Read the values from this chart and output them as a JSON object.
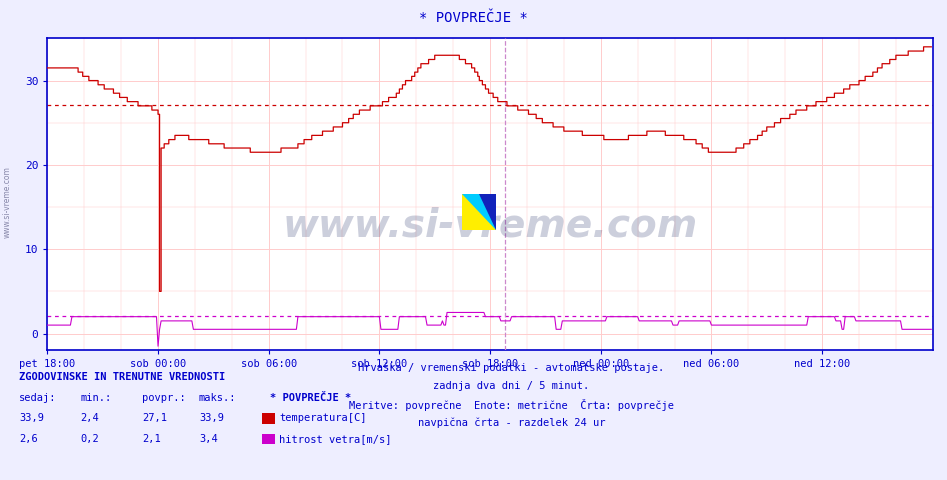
{
  "title": "* POVPREČJE *",
  "bg_color": "#eeeeff",
  "plot_bg_color": "#ffffff",
  "temp_color": "#cc0000",
  "wind_color": "#cc00cc",
  "border_color": "#0000cc",
  "text_color": "#0000cc",
  "avg_temp": 27.1,
  "avg_wind": 2.1,
  "ylim": [
    -2,
    35
  ],
  "yticks": [
    0,
    10,
    20,
    30
  ],
  "x_tick_labels": [
    "pet 18:00",
    "sob 00:00",
    "sob 06:00",
    "sob 12:00",
    "sob 18:00",
    "ned 00:00",
    "ned 06:00",
    "ned 12:00"
  ],
  "x_tick_positions": [
    0,
    72,
    144,
    216,
    288,
    360,
    432,
    504
  ],
  "n_points": 576,
  "vline_x": 298,
  "footer_line1": "Hrvaška / vremenski podatki - avtomatske postaje.",
  "footer_line2": "zadnja dva dni / 5 minut.",
  "footer_line3": "Meritve: povprečne  Enote: metrične  Črta: povprečje",
  "footer_line4": "navpična črta - razdelek 24 ur",
  "stat_title": "ZGODOVINSKE IN TRENUTNE VREDNOSTI",
  "stat_headers": [
    "sedaj:",
    "min.:",
    "povpr.:",
    "maks.:"
  ],
  "stat_temp_vals": [
    "33,9",
    "2,4",
    "27,1",
    "33,9"
  ],
  "stat_wind_vals": [
    "2,6",
    "0,2",
    "2,1",
    "3,4"
  ],
  "legend_label": "* POVPREČJE *",
  "legend_temp": "temperatura[C]",
  "legend_wind": "hitrost vetra[m/s]",
  "watermark": "www.si-vreme.com"
}
